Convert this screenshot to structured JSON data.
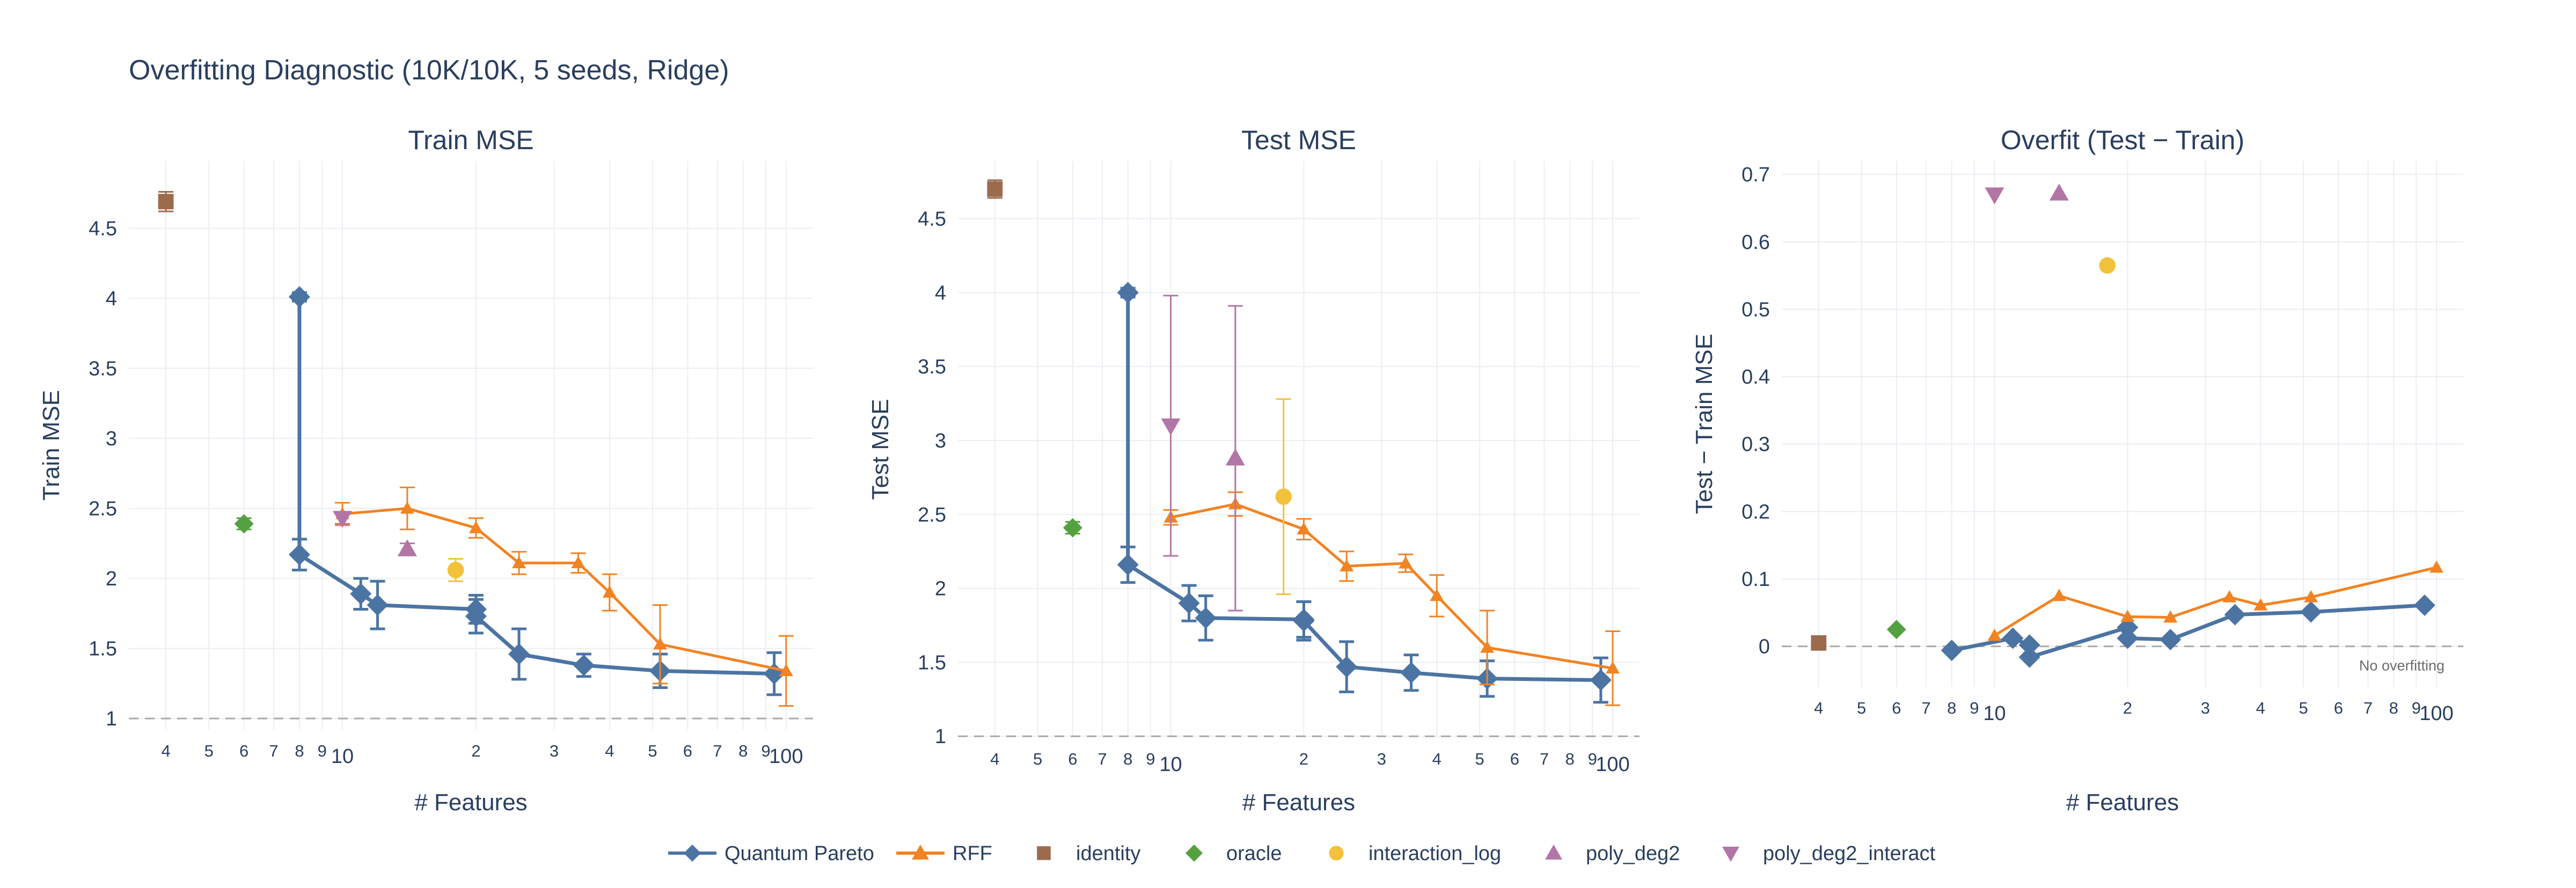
{
  "figure": {
    "title": "Overfitting Diagnostic (10K/10K, 5 seeds, Ridge)"
  },
  "legend": [
    {
      "name": "Quantum Pareto",
      "color": "#4c74a3",
      "marker": "diamond",
      "line": true
    },
    {
      "name": "RFF",
      "color": "#f28322",
      "marker": "triangle-up",
      "line": true
    },
    {
      "name": "identity",
      "color": "#9c6b4e",
      "marker": "square",
      "line": false
    },
    {
      "name": "oracle",
      "color": "#53a140",
      "marker": "diamond",
      "line": false
    },
    {
      "name": "interaction_log",
      "color": "#f2c23a",
      "marker": "circle",
      "line": false
    },
    {
      "name": "poly_deg2",
      "color": "#b276a6",
      "marker": "triangle-up",
      "line": false
    },
    {
      "name": "poly_deg2_interact",
      "color": "#b276a6",
      "marker": "triangle-down",
      "line": false
    }
  ],
  "chart_data": [
    {
      "type": "scatter",
      "title": "Train MSE",
      "xlabel": "# Features",
      "ylabel": "Train MSE",
      "x_scale": "log",
      "xlim": [
        3.3,
        115
      ],
      "ylim": [
        0.92,
        4.98
      ],
      "y_ticks": [
        "1",
        "1.5",
        "2",
        "2.5",
        "3",
        "3.5",
        "4",
        "4.5"
      ],
      "x_tick_labels": [
        "4",
        "5",
        "6",
        "7",
        "8",
        "9",
        "10",
        "2",
        "3",
        "4",
        "5",
        "6",
        "7",
        "8",
        "9",
        "100"
      ],
      "reference_line": 1,
      "series": [
        {
          "name": "Quantum Pareto",
          "x": [
            8,
            8,
            11,
            12,
            20,
            20,
            25,
            35,
            52,
            94
          ],
          "y": [
            4.01,
            2.17,
            1.89,
            1.81,
            1.78,
            1.73,
            1.46,
            1.38,
            1.34,
            1.32
          ],
          "err": [
            0.03,
            0.11,
            0.11,
            0.17,
            0.1,
            0.12,
            0.18,
            0.08,
            0.12,
            0.15
          ]
        },
        {
          "name": "RFF",
          "x": [
            10,
            14,
            20,
            25,
            34,
            40,
            52,
            100
          ],
          "y": [
            2.46,
            2.5,
            2.36,
            2.11,
            2.11,
            1.9,
            1.53,
            1.34
          ],
          "err": [
            0.08,
            0.15,
            0.07,
            0.08,
            0.07,
            0.13,
            0.28,
            0.25
          ]
        },
        {
          "name": "identity",
          "x": [
            4
          ],
          "y": [
            4.69
          ],
          "err": [
            0.07
          ]
        },
        {
          "name": "oracle",
          "x": [
            6
          ],
          "y": [
            2.39
          ],
          "err": [
            0.04
          ]
        },
        {
          "name": "interaction_log",
          "x": [
            18
          ],
          "y": [
            2.06
          ],
          "err": [
            0.08
          ]
        },
        {
          "name": "poly_deg2",
          "x": [
            14
          ],
          "y": [
            2.21
          ],
          "err": [
            0.04
          ]
        },
        {
          "name": "poly_deg2_interact",
          "x": [
            10
          ],
          "y": [
            2.43
          ],
          "err": [
            0.04
          ]
        }
      ]
    },
    {
      "type": "scatter",
      "title": "Test MSE",
      "xlabel": "# Features",
      "ylabel": "Test MSE",
      "x_scale": "log",
      "xlim": [
        3.3,
        115
      ],
      "ylim": [
        0.99,
        4.89
      ],
      "y_ticks": [
        "1",
        "1.5",
        "2",
        "2.5",
        "3",
        "3.5",
        "4",
        "4.5"
      ],
      "x_tick_labels": [
        "4",
        "5",
        "6",
        "7",
        "8",
        "9",
        "10",
        "2",
        "3",
        "4",
        "5",
        "6",
        "7",
        "8",
        "9",
        "100"
      ],
      "reference_line": 1,
      "series": [
        {
          "name": "Quantum Pareto",
          "x": [
            8,
            8,
            11,
            12,
            20,
            20,
            25,
            35,
            52,
            94
          ],
          "y": [
            4.0,
            2.16,
            1.9,
            1.8,
            1.79,
            1.78,
            1.47,
            1.43,
            1.39,
            1.38
          ],
          "err": [
            0.03,
            0.12,
            0.12,
            0.15,
            0.12,
            0.13,
            0.17,
            0.12,
            0.12,
            0.15
          ]
        },
        {
          "name": "RFF",
          "x": [
            10,
            14,
            20,
            25,
            34,
            40,
            52,
            100
          ],
          "y": [
            2.48,
            2.57,
            2.4,
            2.15,
            2.17,
            1.95,
            1.6,
            1.46
          ],
          "err": [
            0.05,
            0.08,
            0.07,
            0.1,
            0.06,
            0.14,
            0.25,
            0.25
          ]
        },
        {
          "name": "identity",
          "x": [
            4
          ],
          "y": [
            4.7
          ],
          "err": [
            0.06
          ]
        },
        {
          "name": "oracle",
          "x": [
            6
          ],
          "y": [
            2.41
          ],
          "err": [
            0.04
          ]
        },
        {
          "name": "interaction_log",
          "x": [
            18
          ],
          "y": [
            2.62
          ],
          "err": [
            0.66
          ]
        },
        {
          "name": "poly_deg2",
          "x": [
            14
          ],
          "y": [
            2.88
          ],
          "err": [
            1.03
          ]
        },
        {
          "name": "poly_deg2_interact",
          "x": [
            10
          ],
          "y": [
            3.1
          ],
          "err": [
            0.88
          ]
        }
      ]
    },
    {
      "type": "scatter",
      "title": "Overfit (Test − Train)",
      "xlabel": "# Features",
      "ylabel": "Test − Train MSE",
      "x_scale": "log",
      "xlim": [
        3.3,
        115
      ],
      "ylim": [
        -0.06,
        0.72
      ],
      "y_ticks": [
        "0",
        "0.1",
        "0.2",
        "0.3",
        "0.4",
        "0.5",
        "0.6",
        "0.7"
      ],
      "x_tick_labels": [
        "4",
        "5",
        "6",
        "7",
        "8",
        "9",
        "10",
        "2",
        "3",
        "4",
        "5",
        "6",
        "7",
        "8",
        "9",
        "100"
      ],
      "reference_line": 0,
      "annotation": "No overfitting",
      "series": [
        {
          "name": "Quantum Pareto",
          "x": [
            8,
            11,
            12,
            12,
            20,
            20,
            25,
            35,
            52,
            94
          ],
          "y": [
            -0.006,
            0.012,
            0.002,
            -0.016,
            0.028,
            0.012,
            0.01,
            0.047,
            0.051,
            0.061
          ]
        },
        {
          "name": "RFF",
          "x": [
            10,
            14,
            20,
            25,
            34,
            40,
            52,
            100
          ],
          "y": [
            0.016,
            0.075,
            0.044,
            0.043,
            0.073,
            0.061,
            0.073,
            0.117
          ]
        },
        {
          "name": "identity",
          "x": [
            4
          ],
          "y": [
            0.005
          ]
        },
        {
          "name": "oracle",
          "x": [
            6
          ],
          "y": [
            0.025
          ]
        },
        {
          "name": "interaction_log",
          "x": [
            18
          ],
          "y": [
            0.565
          ]
        },
        {
          "name": "poly_deg2",
          "x": [
            14
          ],
          "y": [
            0.672
          ]
        },
        {
          "name": "poly_deg2_interact",
          "x": [
            10
          ],
          "y": [
            0.67
          ]
        }
      ]
    }
  ]
}
